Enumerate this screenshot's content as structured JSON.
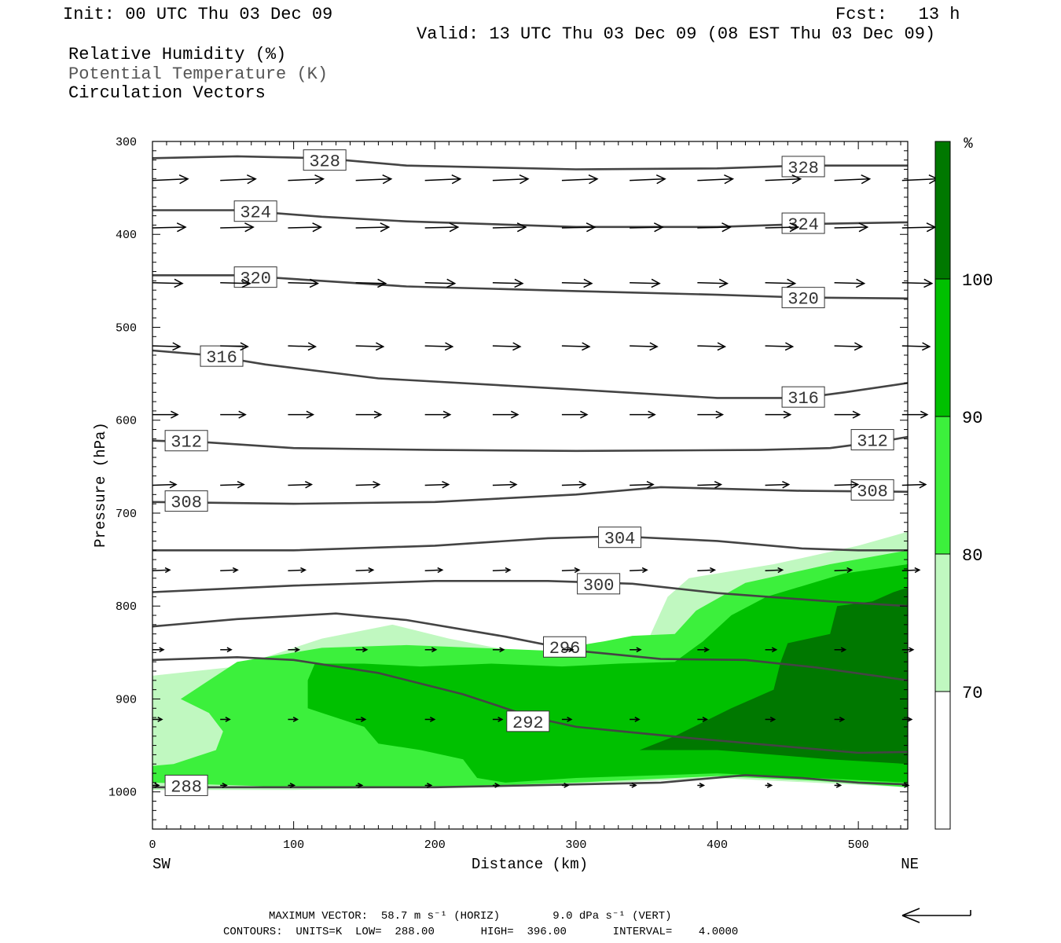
{
  "header": {
    "init": "Init: 00 UTC Thu 03 Dec 09",
    "fcst": "Fcst:   13 h",
    "valid": "Valid: 13 UTC Thu 03 Dec 09 (08 EST Thu 03 Dec 09)",
    "field1": "Relative Humidity (%)",
    "field2": "Potential Temperature (K)",
    "field3": "Circulation Vectors"
  },
  "footer": {
    "max_vector": "MAXIMUM VECTOR:  58.7 m s⁻¹ (HORIZ)        9.0 dPa s⁻¹ (VERT)",
    "contours": "CONTOURS:  UNITS=K  LOW=  288.00       HIGH=  396.00       INTERVAL=    4.0000"
  },
  "colors": {
    "rh70": "#c0f8c0",
    "rh80": "#3cf03c",
    "rh90": "#00c000",
    "rh100": "#007800",
    "contour": "#444444"
  },
  "chart_data": {
    "type": "cross-section",
    "xlabel": "Distance (km)",
    "ylabel": "Pressure (hPa)",
    "x_left_end": "SW",
    "x_right_end": "NE",
    "xlim": [
      0,
      535
    ],
    "ylim": [
      300,
      1040
    ],
    "y_inverted": true,
    "x_ticks": [
      0,
      100,
      200,
      300,
      400,
      500
    ],
    "y_ticks": [
      300,
      400,
      500,
      600,
      700,
      800,
      900,
      1000
    ],
    "colorbar": {
      "unit": "%",
      "levels": [
        70,
        80,
        90,
        100
      ],
      "colors": [
        "#ffffff",
        "#c0f8c0",
        "#3cf03c",
        "#00c000",
        "#007800"
      ]
    },
    "rh_regions": [
      {
        "level": 70,
        "points": [
          [
            0,
            875
          ],
          [
            60,
            865
          ],
          [
            120,
            835
          ],
          [
            170,
            820
          ],
          [
            210,
            835
          ],
          [
            260,
            850
          ],
          [
            330,
            855
          ],
          [
            350,
            840
          ],
          [
            365,
            790
          ],
          [
            380,
            770
          ],
          [
            440,
            755
          ],
          [
            500,
            735
          ],
          [
            535,
            720
          ],
          [
            535,
            995
          ],
          [
            400,
            985
          ],
          [
            300,
            992
          ],
          [
            200,
            995
          ],
          [
            100,
            998
          ],
          [
            0,
            998
          ]
        ]
      },
      {
        "level": 80,
        "points": [
          [
            0,
            990
          ],
          [
            0,
            972
          ],
          [
            15,
            970
          ],
          [
            45,
            955
          ],
          [
            50,
            935
          ],
          [
            40,
            915
          ],
          [
            20,
            900
          ],
          [
            60,
            860
          ],
          [
            120,
            845
          ],
          [
            180,
            842
          ],
          [
            230,
            845
          ],
          [
            280,
            848
          ],
          [
            320,
            838
          ],
          [
            340,
            832
          ],
          [
            370,
            830
          ],
          [
            385,
            805
          ],
          [
            420,
            775
          ],
          [
            480,
            755
          ],
          [
            535,
            740
          ],
          [
            535,
            995
          ],
          [
            470,
            988
          ],
          [
            400,
            983
          ],
          [
            300,
            990
          ],
          [
            200,
            995
          ],
          [
            100,
            995
          ]
        ]
      },
      {
        "level": 90,
        "points": [
          [
            110,
            880
          ],
          [
            115,
            862
          ],
          [
            150,
            862
          ],
          [
            190,
            865
          ],
          [
            240,
            862
          ],
          [
            290,
            865
          ],
          [
            330,
            862
          ],
          [
            370,
            860
          ],
          [
            390,
            838
          ],
          [
            410,
            810
          ],
          [
            435,
            790
          ],
          [
            490,
            765
          ],
          [
            535,
            755
          ],
          [
            535,
            990
          ],
          [
            470,
            985
          ],
          [
            400,
            980
          ],
          [
            300,
            985
          ],
          [
            250,
            990
          ],
          [
            230,
            985
          ],
          [
            220,
            965
          ],
          [
            190,
            955
          ],
          [
            160,
            948
          ],
          [
            150,
            930
          ],
          [
            120,
            915
          ],
          [
            110,
            910
          ]
        ]
      },
      {
        "level": 100,
        "points": [
          [
            345,
            955
          ],
          [
            370,
            940
          ],
          [
            410,
            910
          ],
          [
            440,
            890
          ],
          [
            445,
            860
          ],
          [
            450,
            840
          ],
          [
            480,
            830
          ],
          [
            485,
            800
          ],
          [
            510,
            795
          ],
          [
            525,
            785
          ],
          [
            535,
            780
          ],
          [
            535,
            970
          ],
          [
            480,
            965
          ],
          [
            440,
            960
          ],
          [
            400,
            955
          ]
        ]
      }
    ],
    "theta_contours": [
      {
        "value": 328,
        "points": [
          [
            0,
            318
          ],
          [
            60,
            316
          ],
          [
            120,
            318
          ],
          [
            180,
            326
          ],
          [
            300,
            330
          ],
          [
            400,
            329
          ],
          [
            460,
            326
          ],
          [
            535,
            326
          ]
        ],
        "labels": [
          [
            122,
            320
          ],
          [
            461,
            327
          ]
        ]
      },
      {
        "value": 324,
        "points": [
          [
            0,
            374
          ],
          [
            60,
            374
          ],
          [
            120,
            381
          ],
          [
            180,
            386
          ],
          [
            300,
            392
          ],
          [
            400,
            392
          ],
          [
            460,
            389
          ],
          [
            535,
            387
          ]
        ],
        "labels": [
          [
            73,
            375
          ],
          [
            461,
            388
          ]
        ]
      },
      {
        "value": 320,
        "points": [
          [
            0,
            444
          ],
          [
            60,
            444
          ],
          [
            120,
            450
          ],
          [
            180,
            456
          ],
          [
            300,
            461
          ],
          [
            400,
            465
          ],
          [
            460,
            468
          ],
          [
            535,
            469
          ]
        ],
        "labels": [
          [
            73,
            446
          ],
          [
            461,
            468
          ]
        ]
      },
      {
        "value": 316,
        "points": [
          [
            0,
            525
          ],
          [
            40,
            530
          ],
          [
            80,
            540
          ],
          [
            160,
            555
          ],
          [
            300,
            567
          ],
          [
            400,
            576
          ],
          [
            460,
            576
          ],
          [
            490,
            570
          ],
          [
            535,
            560
          ]
        ],
        "labels": [
          [
            49,
            531
          ],
          [
            461,
            575
          ]
        ]
      },
      {
        "value": 312,
        "points": [
          [
            0,
            622
          ],
          [
            40,
            624
          ],
          [
            100,
            630
          ],
          [
            200,
            632
          ],
          [
            300,
            633
          ],
          [
            430,
            632
          ],
          [
            480,
            630
          ],
          [
            520,
            622
          ],
          [
            535,
            618
          ]
        ],
        "labels": [
          [
            24,
            622
          ],
          [
            510,
            621
          ]
        ]
      },
      {
        "value": 308,
        "points": [
          [
            0,
            688
          ],
          [
            100,
            690
          ],
          [
            200,
            688
          ],
          [
            300,
            680
          ],
          [
            360,
            672
          ],
          [
            460,
            676
          ],
          [
            535,
            677
          ]
        ],
        "labels": [
          [
            24,
            687
          ],
          [
            510,
            675
          ]
        ]
      },
      {
        "value": 304,
        "points": [
          [
            0,
            740
          ],
          [
            100,
            740
          ],
          [
            200,
            735
          ],
          [
            280,
            727
          ],
          [
            330,
            725
          ],
          [
            400,
            730
          ],
          [
            460,
            738
          ],
          [
            500,
            740
          ],
          [
            535,
            740
          ]
        ],
        "labels": [
          [
            331,
            726
          ],
          [
            -1,
            -1
          ]
        ]
      },
      {
        "value": 300,
        "points": [
          [
            0,
            785
          ],
          [
            100,
            778
          ],
          [
            200,
            773
          ],
          [
            280,
            773
          ],
          [
            340,
            776
          ],
          [
            400,
            786
          ],
          [
            480,
            795
          ],
          [
            535,
            800
          ]
        ],
        "labels": [
          [
            316,
            776
          ],
          [
            -1,
            -1
          ]
        ]
      },
      {
        "value": 296,
        "points": [
          [
            0,
            822
          ],
          [
            60,
            814
          ],
          [
            130,
            808
          ],
          [
            180,
            815
          ],
          [
            250,
            833
          ],
          [
            300,
            848
          ],
          [
            360,
            857
          ],
          [
            420,
            858
          ],
          [
            470,
            866
          ],
          [
            535,
            880
          ]
        ],
        "labels": [
          [
            292,
            844
          ],
          [
            -1,
            -1
          ]
        ]
      },
      {
        "value": 292,
        "points": [
          [
            0,
            858
          ],
          [
            60,
            855
          ],
          [
            100,
            858
          ],
          [
            160,
            872
          ],
          [
            220,
            895
          ],
          [
            270,
            920
          ],
          [
            300,
            930
          ],
          [
            380,
            942
          ],
          [
            440,
            950
          ],
          [
            500,
            958
          ],
          [
            535,
            957
          ]
        ],
        "labels": [
          [
            266,
            924
          ],
          [
            -1,
            -1
          ]
        ]
      },
      {
        "value": 288,
        "points": [
          [
            0,
            995
          ],
          [
            100,
            995
          ],
          [
            200,
            995
          ],
          [
            300,
            992
          ],
          [
            360,
            990
          ],
          [
            420,
            982
          ],
          [
            460,
            985
          ],
          [
            500,
            990
          ],
          [
            535,
            992
          ]
        ],
        "labels": [
          [
            24,
            993
          ],
          [
            -1,
            -1
          ]
        ]
      }
    ],
    "vector_rows": [
      {
        "p": 342,
        "dx": 45,
        "dy": -2
      },
      {
        "p": 393,
        "dx": 42,
        "dy": -1
      },
      {
        "p": 452,
        "dx": 38,
        "dy": 1
      },
      {
        "p": 520,
        "dx": 35,
        "dy": 1
      },
      {
        "p": 594,
        "dx": 32,
        "dy": 0
      },
      {
        "p": 670,
        "dx": 30,
        "dy": -1
      },
      {
        "p": 762,
        "dx": 22,
        "dy": -1
      },
      {
        "p": 847,
        "dx": 14,
        "dy": 0
      },
      {
        "p": 922,
        "dx": 12,
        "dy": 0
      },
      {
        "p": 993,
        "dx": 8,
        "dy": 0
      }
    ],
    "vector_x": [
      0,
      48,
      96,
      144,
      193,
      241,
      290,
      338,
      386,
      434,
      483,
      531
    ]
  }
}
